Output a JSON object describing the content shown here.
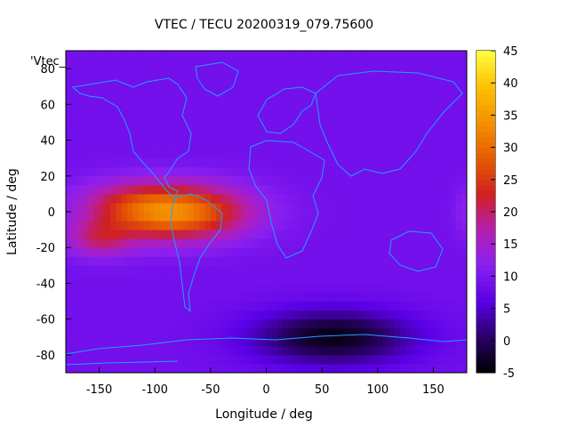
{
  "chart_data": {
    "type": "heatmap",
    "title": "VTEC / TECU 20200319_079.75600",
    "xlabel": "Longitude / deg",
    "ylabel": "Latitude / deg",
    "xlim": [
      -180,
      180
    ],
    "ylim": [
      -90,
      90
    ],
    "x_ticks": [
      -150,
      -100,
      -50,
      0,
      50,
      100,
      150
    ],
    "y_ticks": [
      -80,
      -60,
      -40,
      -20,
      0,
      20,
      40,
      60,
      80
    ],
    "colorbar": {
      "min": -5,
      "max": 45,
      "ticks": [
        -5,
        0,
        5,
        10,
        15,
        20,
        25,
        30,
        35,
        40,
        45
      ],
      "palette": [
        "#000000",
        "#2a0066",
        "#5a00e6",
        "#8a1ff0",
        "#b51fb0",
        "#d02020",
        "#e65c00",
        "#f59000",
        "#ffc000",
        "#ffff40"
      ]
    },
    "legend_label": "'Vtec_",
    "background_level": 9,
    "anomalies": [
      {
        "region": "Pacific / Americas equatorial peak",
        "lon": -85,
        "lat": 0,
        "peak": 34,
        "width_lon": 65,
        "width_lat": 15
      },
      {
        "region": "Eastern Pacific crest",
        "lon": -150,
        "lat": -15,
        "peak": 18,
        "width_lon": 30,
        "width_lat": 10
      },
      {
        "region": "Northern crest",
        "lon": -130,
        "lat": 8,
        "peak": 12,
        "width_lon": 40,
        "width_lat": 10
      },
      {
        "region": "Date-line edge",
        "lon": 178,
        "lat": 0,
        "peak": 12,
        "width_lon": 10,
        "width_lat": 15
      },
      {
        "region": "Southern Atlantic / Indian low",
        "lon": 60,
        "lat": -70,
        "peak": -4,
        "width_lon": 70,
        "width_lat": 15
      }
    ],
    "grid": false,
    "legend_position": "top-left"
  }
}
